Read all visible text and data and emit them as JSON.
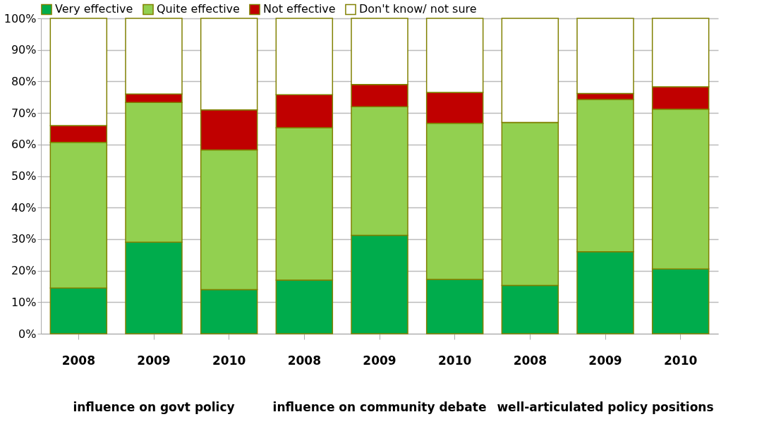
{
  "chart_data": {
    "type": "bar",
    "stacked": true,
    "categories": [
      "2008",
      "2009",
      "2010",
      "2008",
      "2009",
      "2010",
      "2008",
      "2009",
      "2010"
    ],
    "series": [
      {
        "name": "Very effective",
        "color": "#00ac4c",
        "values": [
          14.5,
          29,
          14,
          17,
          31.2,
          17.2,
          15.3,
          26,
          20.5
        ]
      },
      {
        "name": "Quite effective",
        "color": "#92d050",
        "values": [
          46.2,
          44.3,
          44.3,
          48.3,
          40.8,
          49.5,
          51.7,
          48.3,
          50.7
        ]
      },
      {
        "name": "Not effective",
        "color": "#c00000",
        "values": [
          5.3,
          2.7,
          12.7,
          10.5,
          7,
          9.8,
          0,
          1.9,
          7.1
        ]
      },
      {
        "name": "Don't know/ not sure",
        "color": "#ffffff",
        "values": [
          34,
          24,
          29,
          24.2,
          21,
          23.5,
          33,
          23.8,
          21.7
        ]
      }
    ],
    "annotations": [
      "influence on govt policy",
      "influence on community debate",
      "well-articulated policy positions"
    ],
    "ylim": [
      0,
      100
    ],
    "yticks": [
      {
        "value": 0,
        "label": "0%"
      },
      {
        "value": 10,
        "label": "10%"
      },
      {
        "value": 20,
        "label": "20%"
      },
      {
        "value": 30,
        "label": "30%"
      },
      {
        "value": 40,
        "label": "40%"
      },
      {
        "value": 50,
        "label": "50%"
      },
      {
        "value": 60,
        "label": "60%"
      },
      {
        "value": 70,
        "label": "70%"
      },
      {
        "value": 80,
        "label": "80%"
      },
      {
        "value": 90,
        "label": "90%"
      },
      {
        "value": 100,
        "label": "100%"
      }
    ],
    "grid": "y",
    "legend": "top"
  }
}
